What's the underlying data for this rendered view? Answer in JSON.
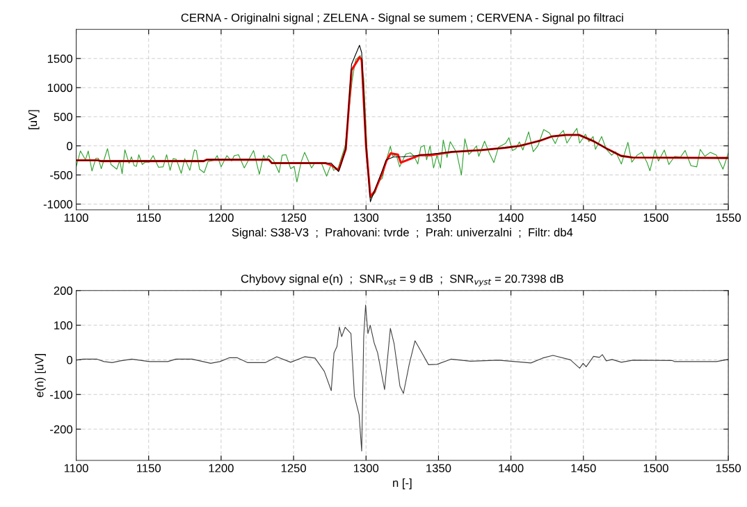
{
  "chart_data": [
    {
      "type": "line",
      "title": "CERNA - Originalni signal ; ZELENA - Signal se sumem ; CERVENA - Signal po filtraci",
      "xlabel": "Signal: S38-V3  ;  Prahovani: tvrde  ;  Prah: univerzalni  ;  Filtr: db4",
      "ylabel": "[uV]",
      "xlim": [
        1100,
        1550
      ],
      "xticks": [
        1100,
        1150,
        1200,
        1250,
        1300,
        1350,
        1400,
        1450,
        1500,
        1550
      ],
      "ylim": [
        -1100,
        2000
      ],
      "yticks": [
        -1000,
        -500,
        0,
        500,
        1000,
        1500
      ],
      "grid": true,
      "line_style": "solid",
      "marker": "none",
      "legend": false,
      "series": [
        {
          "color": "#2ca02c",
          "x": [
            1100,
            1102.9,
            1106.4,
            1108.3,
            1110.9,
            1113.6,
            1115.2,
            1117.3,
            1121.6,
            1124,
            1128,
            1130.1,
            1131.7,
            1133.6,
            1136.5,
            1138.1,
            1140,
            1141.6,
            1143.2,
            1145.6,
            1147.7,
            1150.4,
            1153.1,
            1156.8,
            1160,
            1162.4,
            1164.8,
            1166.9,
            1169.1,
            1172.5,
            1174.9,
            1178.4,
            1181.6,
            1182.9,
            1185.1,
            1188.3,
            1190.9,
            1195.2,
            1197.3,
            1200,
            1204,
            1207.2,
            1209.1,
            1212,
            1216,
            1222.4,
            1226.4,
            1229.3,
            1230.9,
            1232.8,
            1236,
            1240,
            1242.1,
            1244.8,
            1248,
            1250.4,
            1252.3,
            1255.2,
            1257.6,
            1262.4,
            1264.8,
            1268,
            1269.6,
            1272.8,
            1276,
            1277.6,
            1280.8,
            1285.6,
            1290.4,
            1292.8,
            1296,
            1298.4,
            1300.8,
            1303.2,
            1306.4,
            1308.8,
            1311.2,
            1313.6,
            1316.8,
            1318.4,
            1320.8,
            1323.2,
            1327.4,
            1330.6,
            1333,
            1335.7,
            1337.8,
            1340.2,
            1341.8,
            1344.2,
            1346.6,
            1349,
            1351.4,
            1353.3,
            1355.9,
            1358.1,
            1362.6,
            1365.8,
            1368.2,
            1370.9,
            1373.8,
            1376.2,
            1377.8,
            1381.8,
            1385,
            1388.2,
            1391.4,
            1396.2,
            1398.6,
            1401,
            1403.4,
            1405.8,
            1408.2,
            1412.2,
            1415.4,
            1418.6,
            1422.6,
            1426.6,
            1430.6,
            1433,
            1436.2,
            1438.6,
            1441,
            1445.5,
            1447.4,
            1451.4,
            1453.8,
            1456.7,
            1458.3,
            1462.6,
            1465.8,
            1469.5,
            1472.2,
            1476.2,
            1480.7,
            1483.4,
            1487.1,
            1490.3,
            1493.8,
            1495.9,
            1499.4,
            1501.8,
            1505.8,
            1509,
            1513,
            1517,
            1520.2,
            1524.2,
            1528.2,
            1530.6,
            1533.8,
            1537.5,
            1541.8,
            1546.3,
            1548.2,
            1550
          ],
          "values": [
            -360,
            -88,
            -240,
            -88,
            -432,
            -212,
            -212,
            -392,
            -48,
            -320,
            -400,
            -248,
            -480,
            -68,
            -300,
            -188,
            -340,
            -352,
            -152,
            -320,
            -280,
            -280,
            -168,
            -368,
            -360,
            -152,
            -420,
            -220,
            -232,
            -472,
            -220,
            -420,
            -68,
            -80,
            -400,
            -460,
            -272,
            -248,
            -168,
            -360,
            -168,
            -260,
            -168,
            -152,
            -380,
            -80,
            -488,
            -160,
            -248,
            -168,
            -240,
            -460,
            -160,
            -152,
            -392,
            -352,
            -620,
            -280,
            -112,
            -380,
            -288,
            -288,
            -320,
            -520,
            -312,
            -420,
            -380,
            0,
            1120,
            1480,
            1552,
            1160,
            -120,
            -900,
            -800,
            -600,
            -560,
            -280,
            -8,
            -180,
            -152,
            -360,
            -140,
            -120,
            -172,
            -312,
            -20,
            8,
            -240,
            0,
            -380,
            -160,
            -380,
            100,
            -200,
            72,
            -120,
            -500,
            120,
            -148,
            -80,
            0,
            -180,
            80,
            -120,
            -288,
            -20,
            40,
            140,
            -80,
            -48,
            68,
            -72,
            240,
            -100,
            0,
            280,
            220,
            40,
            180,
            264,
            48,
            140,
            300,
            48,
            200,
            72,
            160,
            -60,
            160,
            -60,
            -160,
            -100,
            -312,
            60,
            -280,
            -160,
            -112,
            -280,
            -428,
            -72,
            -260,
            -72,
            -320,
            -180,
            -192,
            -80,
            -340,
            -360,
            -60,
            -180,
            -112,
            -160,
            -400,
            -260,
            -120
          ]
        },
        {
          "color": "#ff0000",
          "x": [
            1100,
            1115,
            1117,
            1188,
            1190,
            1233,
            1235,
            1272,
            1276,
            1281,
            1286,
            1290,
            1295.5,
            1297,
            1300,
            1303,
            1306,
            1311,
            1314,
            1317,
            1322,
            1324,
            1337,
            1345,
            1359,
            1380,
            1396,
            1406,
            1420,
            1428,
            1438,
            1447,
            1457,
            1467,
            1476,
            1484,
            1550
          ],
          "values": [
            -248,
            -248,
            -262,
            -262,
            -238,
            -238,
            -296,
            -296,
            -330,
            -420,
            -60,
            1300,
            1520,
            1480,
            0,
            -872,
            -780,
            -480,
            -260,
            -128,
            -150,
            -288,
            -160,
            -160,
            -104,
            -72,
            -32,
            0,
            88,
            160,
            188,
            188,
            80,
            -60,
            -172,
            -200,
            -208
          ]
        },
        {
          "color": "#000000",
          "x": [
            1100,
            1115,
            1117,
            1188,
            1190,
            1233,
            1235,
            1276,
            1279,
            1281,
            1283,
            1286,
            1290,
            1294,
            1295.5,
            1297,
            1300,
            1303,
            1306,
            1311,
            1314,
            1319,
            1325,
            1330,
            1340,
            1359,
            1380,
            1396,
            1406,
            1420,
            1428,
            1438,
            1447,
            1457,
            1467,
            1476,
            1484,
            1550
          ],
          "values": [
            -248,
            -248,
            -262,
            -262,
            -238,
            -238,
            -296,
            -296,
            -380,
            -442,
            -300,
            -40,
            1400,
            1640,
            1728,
            1600,
            0,
            -960,
            -760,
            -440,
            -240,
            -192,
            -188,
            -180,
            -152,
            -104,
            -72,
            -32,
            0,
            88,
            160,
            188,
            188,
            80,
            -60,
            -172,
            -200,
            -208
          ]
        }
      ]
    },
    {
      "type": "line",
      "title": "Chybovy signal e(n)  ;  SNR$_{vst}$ = 9 dB  ;  SNR$_{vyst}$ = 20.7398 dB",
      "xlabel": "n [-]",
      "ylabel": "e(n) [uV]",
      "xlim": [
        1100,
        1550
      ],
      "xticks": [
        1100,
        1150,
        1200,
        1250,
        1300,
        1350,
        1400,
        1450,
        1500,
        1550
      ],
      "ylim": [
        -290,
        200
      ],
      "yticks": [
        -200,
        -100,
        0,
        100,
        200
      ],
      "grid": true,
      "line_style": "solid",
      "marker": "none",
      "legend": false,
      "series": [
        {
          "color": "#404040",
          "x": [
            1100,
            1104.8,
            1114.4,
            1119.2,
            1124.8,
            1130.4,
            1138.4,
            1150.4,
            1163.2,
            1168.8,
            1180,
            1192.8,
            1199.2,
            1205.6,
            1211.2,
            1218.4,
            1230.4,
            1238.4,
            1248,
            1257.6,
            1264.8,
            1271.2,
            1276,
            1277.9,
            1280,
            1281.6,
            1283.2,
            1285.6,
            1289.6,
            1292,
            1295.2,
            1297,
            1298.4,
            1299.7,
            1301.3,
            1302.9,
            1305.6,
            1308,
            1312.8,
            1316.8,
            1319.4,
            1323.4,
            1325.8,
            1329.8,
            1333.8,
            1337.8,
            1343.1,
            1349,
            1358.6,
            1372.2,
            1391.4,
            1413.8,
            1421.8,
            1429,
            1441,
            1447.4,
            1449.8,
            1451.9,
            1457,
            1461,
            1463.1,
            1465.8,
            1469.8,
            1476.2,
            1484.2,
            1511.4,
            1513,
            1524.2,
            1534.6,
            1541.8,
            1549.8
          ],
          "values": [
            -1,
            2,
            2,
            -5,
            -8,
            -3,
            2,
            -5,
            -5,
            2,
            2,
            -10,
            -5,
            6,
            6,
            -8,
            -8,
            9,
            -7,
            9,
            5,
            -33,
            -89,
            20,
            39,
            95,
            67,
            94,
            76,
            -105,
            -158,
            -263,
            66,
            158,
            76,
            100,
            49,
            20,
            -86,
            91,
            46,
            -76,
            -97,
            -13,
            55,
            26,
            -14,
            -13,
            2,
            -4,
            -1,
            -9,
            5,
            13,
            0,
            -24,
            -10,
            -20,
            10,
            7,
            15,
            -3,
            1,
            -7,
            -1,
            -2,
            -5,
            -5,
            -5,
            -5,
            1
          ]
        }
      ]
    }
  ]
}
